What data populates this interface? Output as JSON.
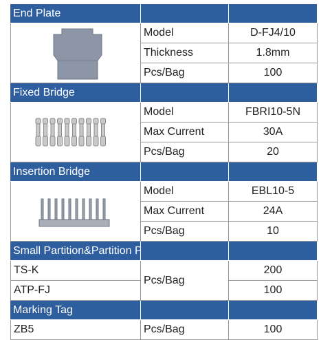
{
  "sections": [
    {
      "title": "End Plate",
      "rows": [
        {
          "label": "Model",
          "value": "D-FJ4/10"
        },
        {
          "label": "Thickness",
          "value": "1.8mm"
        },
        {
          "label": "Pcs/Bag",
          "value": "100"
        }
      ]
    },
    {
      "title": "Fixed Bridge",
      "rows": [
        {
          "label": "Model",
          "value": "FBRI10-5N"
        },
        {
          "label": "Max Current",
          "value": "30A"
        },
        {
          "label": "Pcs/Bag",
          "value": "20"
        }
      ]
    },
    {
      "title": "Insertion Bridge",
      "rows": [
        {
          "label": "Model",
          "value": "EBL10-5"
        },
        {
          "label": "Max Current",
          "value": "24A"
        },
        {
          "label": "Pcs/Bag",
          "value": "10"
        }
      ]
    },
    {
      "title": "Small Partition&Partition Plate",
      "label": "Pcs/Bag",
      "items": [
        {
          "name": "TS-K",
          "value": "200"
        },
        {
          "name": "ATP-FJ",
          "value": "100"
        }
      ]
    },
    {
      "title": "Marking Tag",
      "label": "Pcs/Bag",
      "items": [
        {
          "name": "ZB5",
          "value": "100"
        }
      ]
    }
  ]
}
